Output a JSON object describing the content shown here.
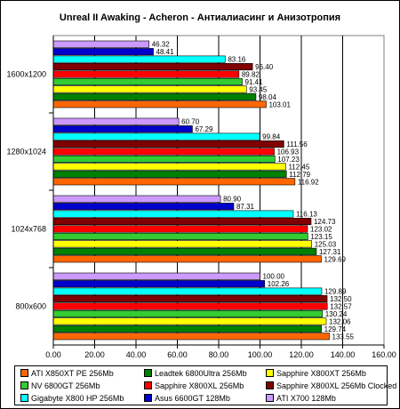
{
  "chart_data": {
    "type": "bar",
    "orientation": "horizontal",
    "title": "Unreal II Awaking - Acheron - Антиалиасинг и Анизотропия",
    "xlabel": "",
    "ylabel": "",
    "xlim": [
      0,
      160
    ],
    "xticks": [
      "0.00",
      "20.00",
      "40.00",
      "60.00",
      "80.00",
      "100.00",
      "120.00",
      "140.00",
      "160.00"
    ],
    "grid": true,
    "legend_position": "bottom",
    "categories": [
      "1600x1200",
      "1280x1024",
      "1024x768",
      "800x600"
    ],
    "series": [
      {
        "name": "ATI X850XT PE 256Mb",
        "color": "#ff6600",
        "values": [
          103.01,
          116.92,
          129.69,
          133.55
        ],
        "labels": [
          "103.01",
          "116.92",
          "129.69",
          "133.55"
        ]
      },
      {
        "name": "Leadtek 6800Ultra 256Mb",
        "color": "#008000",
        "values": [
          98.04,
          112.79,
          127.31,
          129.74
        ],
        "labels": [
          "98.04",
          "112.79",
          "127.31",
          "129.74"
        ]
      },
      {
        "name": "Sapphire X800XT 256Mb",
        "color": "#ffff00",
        "values": [
          93.45,
          112.45,
          125.03,
          132.06
        ],
        "labels": [
          "93.45",
          "112.45",
          "125.03",
          "132.06"
        ]
      },
      {
        "name": "NV 6800GT 256Mb",
        "color": "#33cc33",
        "values": [
          91.41,
          107.23,
          123.15,
          130.24
        ],
        "labels": [
          "91.41",
          "107.23",
          "123.15",
          "130.24"
        ]
      },
      {
        "name": "Sapphire X800XL 256Mb",
        "color": "#ff0000",
        "values": [
          89.82,
          106.93,
          123.02,
          132.57
        ],
        "labels": [
          "89.82",
          "106.93",
          "123.02",
          "132.57"
        ]
      },
      {
        "name": "Sapphire X800XL 256Mb Clocked",
        "color": "#800000",
        "values": [
          96.4,
          111.56,
          124.73,
          132.5
        ],
        "labels": [
          "96.40",
          "111.56",
          "124.73",
          "132.50"
        ]
      },
      {
        "name": "Gigabyte X800 HP 256Mb",
        "color": "#00ffff",
        "values": [
          83.16,
          99.84,
          116.13,
          129.89
        ],
        "labels": [
          "83.16",
          "99.84",
          "116.13",
          "129.89"
        ]
      },
      {
        "name": "Asus 6600GT 128Mb",
        "color": "#0000cc",
        "values": [
          48.41,
          67.29,
          87.31,
          102.26
        ],
        "labels": [
          "48.41",
          "67.29",
          "87.31",
          "102.26"
        ]
      },
      {
        "name": "ATI X700 128Mb",
        "color": "#cc99ff",
        "values": [
          46.32,
          60.7,
          80.9,
          100.0
        ],
        "labels": [
          "46.32",
          "60.70",
          "80.90",
          "100.00"
        ]
      }
    ]
  }
}
